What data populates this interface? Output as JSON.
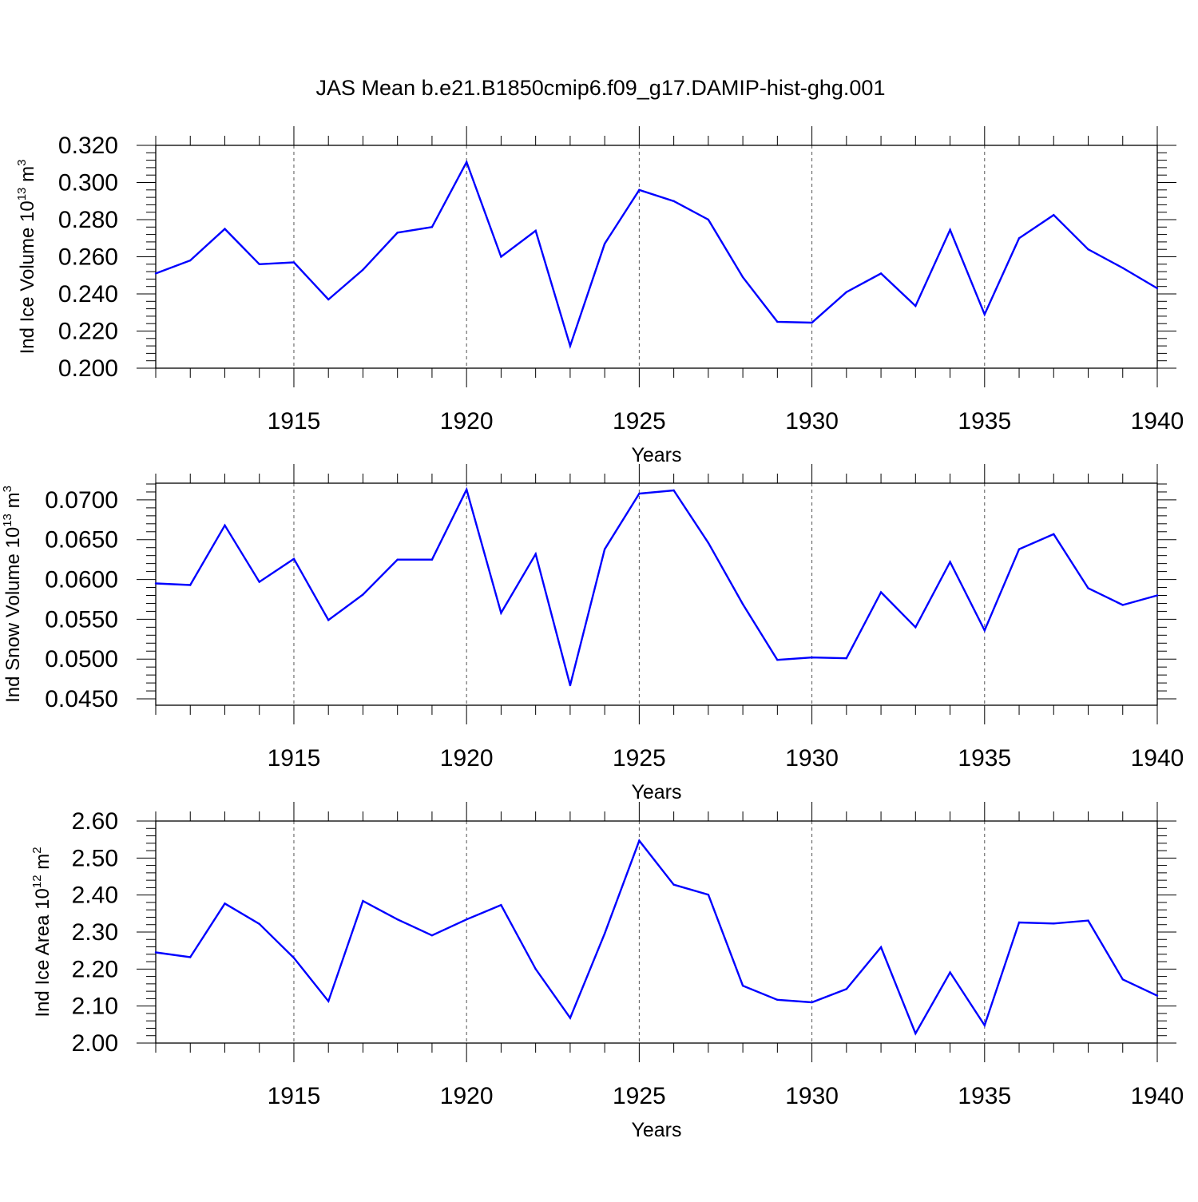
{
  "title": "JAS Mean b.e21.B1850cmip6.f09_g17.DAMIP-hist-ghg.001",
  "colors": {
    "line": "#0000ff",
    "axes": "#000000",
    "grid": "#555555",
    "background": "#ffffff"
  },
  "chart_data": [
    {
      "type": "line",
      "xlabel": "Years",
      "ylabel": {
        "text": "Ind Ice Volume 10",
        "sup1": "13",
        "mid": " m",
        "sup2": "3"
      },
      "xlim": [
        1911,
        1940
      ],
      "ylim": [
        0.2,
        0.32
      ],
      "x_ticks": [
        "1915",
        "1920",
        "1925",
        "1930",
        "1935",
        "1940"
      ],
      "y_ticks": [
        "0.200",
        "0.220",
        "0.240",
        "0.260",
        "0.280",
        "0.300",
        "0.320"
      ],
      "grid": "vertical dashed at major x ticks",
      "x": [
        1911,
        1912,
        1913,
        1914,
        1915,
        1916,
        1917,
        1918,
        1919,
        1920,
        1921,
        1922,
        1923,
        1924,
        1925,
        1926,
        1927,
        1928,
        1929,
        1930,
        1931,
        1932,
        1933,
        1934,
        1935,
        1936,
        1937,
        1938,
        1939,
        1940
      ],
      "values": [
        0.251,
        0.258,
        0.275,
        0.256,
        0.257,
        0.237,
        0.253,
        0.273,
        0.276,
        0.311,
        0.26,
        0.274,
        0.212,
        0.267,
        0.296,
        0.29,
        0.28,
        0.249,
        0.225,
        0.2245,
        0.241,
        0.251,
        0.2335,
        0.2745,
        0.229,
        0.27,
        0.2825,
        0.264,
        0.254,
        0.243
      ]
    },
    {
      "type": "line",
      "xlabel": "Years",
      "ylabel": {
        "text": "Ind Snow Volume 10",
        "sup1": "13",
        "mid": " m",
        "sup2": "3"
      },
      "xlim": [
        1911,
        1940
      ],
      "ylim": [
        0.0442,
        0.0721
      ],
      "x_ticks": [
        "1915",
        "1920",
        "1925",
        "1930",
        "1935",
        "1940"
      ],
      "y_ticks": [
        "0.0450",
        "0.0500",
        "0.0550",
        "0.0600",
        "0.0650",
        "0.0700"
      ],
      "grid": "vertical dashed at major x ticks",
      "x": [
        1911,
        1912,
        1913,
        1914,
        1915,
        1916,
        1917,
        1918,
        1919,
        1920,
        1921,
        1922,
        1923,
        1924,
        1925,
        1926,
        1927,
        1928,
        1929,
        1930,
        1931,
        1932,
        1933,
        1934,
        1935,
        1936,
        1937,
        1938,
        1939,
        1940
      ],
      "values": [
        0.0595,
        0.0593,
        0.0668,
        0.0597,
        0.0626,
        0.0549,
        0.0581,
        0.0625,
        0.0625,
        0.0713,
        0.0558,
        0.0632,
        0.0467,
        0.0638,
        0.0708,
        0.0712,
        0.0646,
        0.0569,
        0.0499,
        0.0502,
        0.0501,
        0.0584,
        0.054,
        0.0622,
        0.0536,
        0.0638,
        0.0657,
        0.0589,
        0.0568,
        0.058
      ]
    },
    {
      "type": "line",
      "xlabel": "Years",
      "ylabel": {
        "text": "Ind Ice Area 10",
        "sup1": "12",
        "mid": " m",
        "sup2": "2"
      },
      "xlim": [
        1911,
        1940
      ],
      "ylim": [
        2.0,
        2.6
      ],
      "x_ticks": [
        "1915",
        "1920",
        "1925",
        "1930",
        "1935",
        "1940"
      ],
      "y_ticks": [
        "2.00",
        "2.10",
        "2.20",
        "2.30",
        "2.40",
        "2.50",
        "2.60"
      ],
      "grid": "vertical dashed at major x ticks",
      "x": [
        1911,
        1912,
        1913,
        1914,
        1915,
        1916,
        1917,
        1918,
        1919,
        1920,
        1921,
        1922,
        1923,
        1924,
        1925,
        1926,
        1927,
        1928,
        1929,
        1930,
        1931,
        1932,
        1933,
        1934,
        1935,
        1936,
        1937,
        1938,
        1939,
        1940
      ],
      "values": [
        2.245,
        2.232,
        2.377,
        2.322,
        2.23,
        2.113,
        2.384,
        2.334,
        2.291,
        2.334,
        2.373,
        2.2,
        2.068,
        2.296,
        2.547,
        2.428,
        2.401,
        2.155,
        2.117,
        2.11,
        2.146,
        2.259,
        2.026,
        2.191,
        2.048,
        2.326,
        2.323,
        2.331,
        2.172,
        2.128
      ]
    }
  ]
}
